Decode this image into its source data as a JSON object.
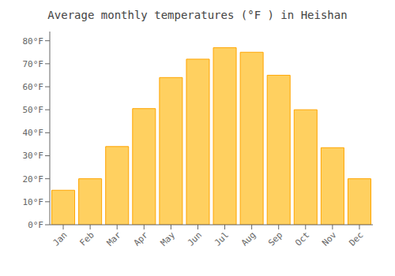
{
  "chart_data": {
    "type": "bar",
    "title": "Average monthly temperatures (°F ) in Heishan",
    "categories": [
      "Jan",
      "Feb",
      "Mar",
      "Apr",
      "May",
      "Jun",
      "Jul",
      "Aug",
      "Sep",
      "Oct",
      "Nov",
      "Dec"
    ],
    "values": [
      15,
      20,
      34,
      50.5,
      64,
      72,
      77,
      75,
      65,
      50,
      33.5,
      20
    ],
    "color": "#FFD060",
    "ylim": [
      0,
      84
    ],
    "yticks": [
      {
        "value": 0,
        "label": "0°F"
      },
      {
        "value": 10,
        "label": "10°F"
      },
      {
        "value": 20,
        "label": "20°F"
      },
      {
        "value": 30,
        "label": "30°F"
      },
      {
        "value": 40,
        "label": "40°F"
      },
      {
        "value": 50,
        "label": "50°F"
      },
      {
        "value": 60,
        "label": "60°F"
      },
      {
        "value": 70,
        "label": "70°F"
      },
      {
        "value": 80,
        "label": "80°F"
      }
    ],
    "grid": false
  }
}
